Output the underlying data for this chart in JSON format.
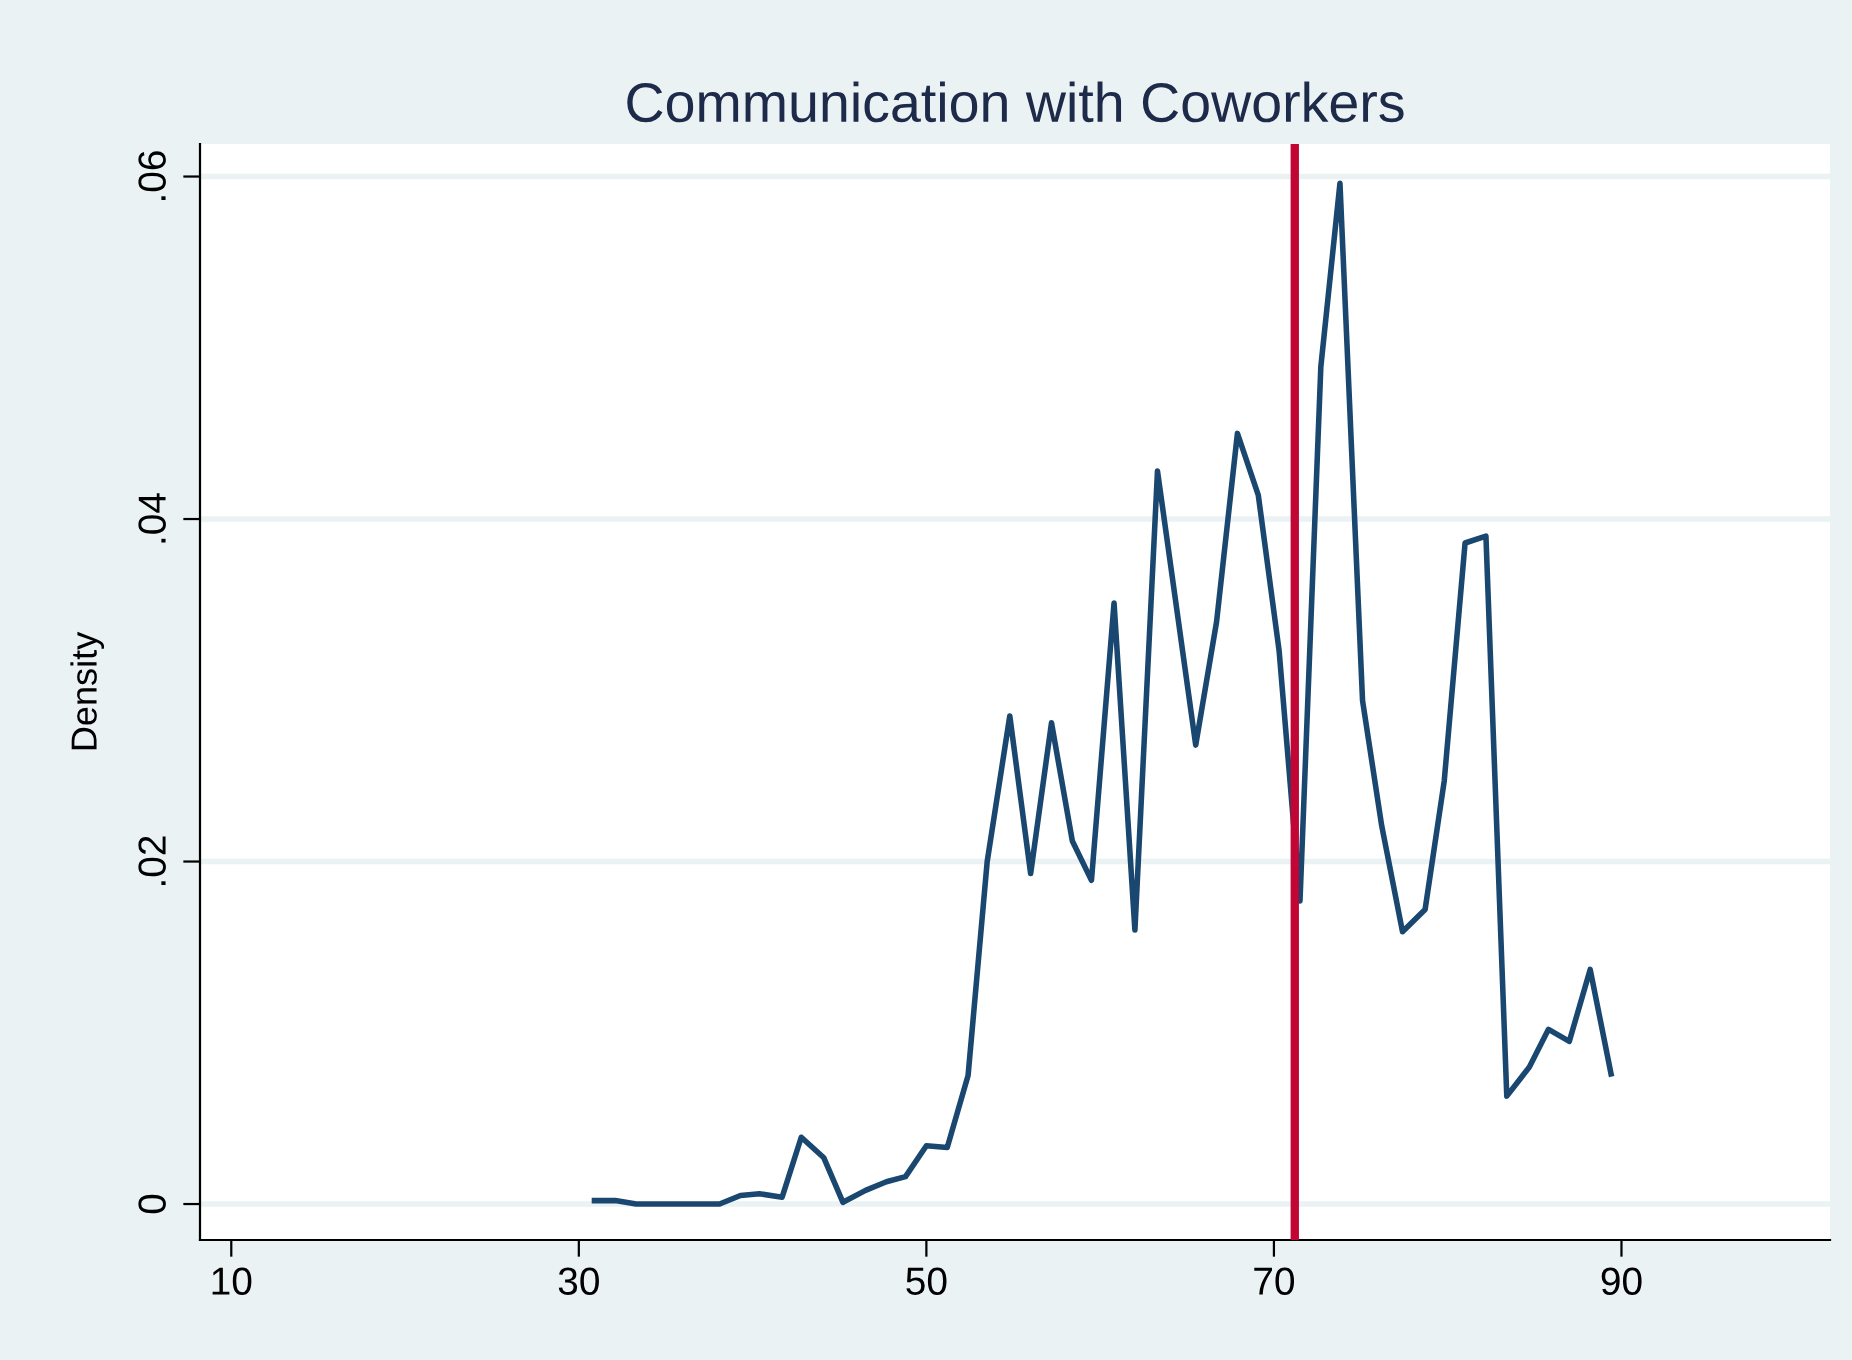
{
  "chart_data": {
    "type": "line",
    "title": "Communication with Coworkers",
    "ylabel": "Density",
    "x": [
      30.9,
      32.1,
      33.3,
      34.5,
      35.7,
      36.9,
      38.1,
      39.3,
      40.4,
      41.7,
      42.8,
      44.1,
      45.2,
      46.5,
      47.7,
      48.8,
      50.0,
      51.2,
      52.4,
      53.5,
      54.8,
      56.0,
      57.2,
      58.4,
      59.5,
      60.8,
      62.0,
      63.3,
      65.5,
      66.7,
      67.9,
      69.1,
      70.3,
      71.5,
      72.7,
      73.8,
      75.1,
      76.2,
      77.4,
      78.7,
      79.8,
      81.0,
      82.2,
      83.4,
      84.7,
      85.8,
      87.0,
      88.2,
      89.4
    ],
    "series": [
      {
        "color": "#1a476f",
        "values": [
          0.0002,
          0.0002,
          0,
          0,
          0,
          0,
          0,
          0.0005,
          0.0006,
          0.0004,
          0.0039,
          0.0027,
          0.0001,
          0.0008,
          0.0013,
          0.0016,
          0.0034,
          0.0033,
          0.0075,
          0.02,
          0.0285,
          0.0193,
          0.0281,
          0.0212,
          0.0189,
          0.0351,
          0.016,
          0.0428,
          0.0268,
          0.034,
          0.045,
          0.0414,
          0.0323,
          0.0177,
          0.0489,
          0.0596,
          0.0294,
          0.0221,
          0.0159,
          0.0172,
          0.0247,
          0.0386,
          0.039,
          0.0063,
          0.008,
          0.0102,
          0.0095,
          0.0137,
          0.0076
        ]
      }
    ],
    "xlim": [
      8.2,
      102
    ],
    "ylim": [
      -0.0021,
      0.0619
    ],
    "xticks": [
      10,
      30,
      50,
      70,
      90
    ],
    "yticks": [
      {
        "value": 0,
        "label": "0"
      },
      {
        "value": 0.02,
        "label": ".02"
      },
      {
        "value": 0.04,
        "label": ".04"
      },
      {
        "value": 0.06,
        "label": ".06"
      }
    ],
    "ref_lines": [
      {
        "axis": "x",
        "value": 71.2,
        "color": "#c10534"
      }
    ],
    "grid": "y",
    "marker": "none",
    "line_style": "solid"
  }
}
